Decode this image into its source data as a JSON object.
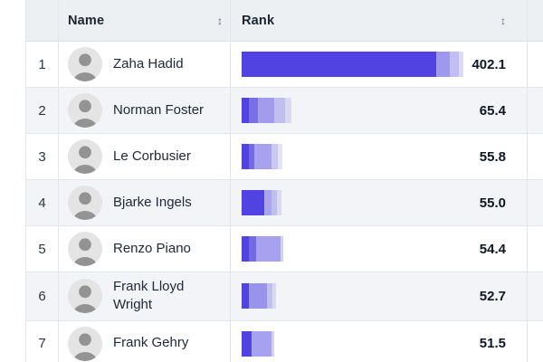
{
  "colors": {
    "bar": "#5143e1",
    "header_bg": "#edf0f3",
    "alt_row_bg": "#f2f4f7",
    "border": "#e3e6ea",
    "value_text": "#0e1724"
  },
  "table": {
    "columns": [
      {
        "key": "index",
        "label": ""
      },
      {
        "key": "name",
        "label": "Name",
        "sortable": true
      },
      {
        "key": "rank",
        "label": "Rank",
        "sortable": true
      }
    ],
    "sort_icon": "↕",
    "rows": [
      {
        "index": "1",
        "name": "Zaha Hadid",
        "rank": "402.1",
        "bar_segments": [
          [
            215,
            1
          ],
          [
            15,
            0.55
          ],
          [
            10,
            0.35
          ],
          [
            5,
            0.2
          ]
        ]
      },
      {
        "index": "2",
        "name": "Norman Foster",
        "rank": "65.4",
        "bar_segments": [
          [
            8,
            1
          ],
          [
            10,
            0.75
          ],
          [
            18,
            0.5
          ],
          [
            12,
            0.3
          ],
          [
            7,
            0.15
          ]
        ]
      },
      {
        "index": "3",
        "name": "Le Corbusier",
        "rank": "55.8",
        "bar_segments": [
          [
            8,
            1
          ],
          [
            6,
            0.8
          ],
          [
            19,
            0.5
          ],
          [
            7,
            0.3
          ],
          [
            5,
            0.15
          ]
        ]
      },
      {
        "index": "4",
        "name": "Bjarke Ingels",
        "rank": "55.0",
        "bar_segments": [
          [
            25,
            1
          ],
          [
            8,
            0.45
          ],
          [
            6,
            0.3
          ],
          [
            5,
            0.15
          ]
        ]
      },
      {
        "index": "5",
        "name": "Renzo Piano",
        "rank": "54.4",
        "bar_segments": [
          [
            8,
            1
          ],
          [
            8,
            0.8
          ],
          [
            27,
            0.5
          ],
          [
            3,
            0.25
          ]
        ]
      },
      {
        "index": "6",
        "name": "Frank Lloyd Wright",
        "rank": "52.7",
        "bar_segments": [
          [
            8,
            1
          ],
          [
            20,
            0.55
          ],
          [
            6,
            0.3
          ],
          [
            4,
            0.15
          ]
        ]
      },
      {
        "index": "7",
        "name": "Frank Gehry",
        "rank": "51.5",
        "bar_segments": [
          [
            11,
            1
          ],
          [
            22,
            0.5
          ],
          [
            3,
            0.25
          ]
        ]
      }
    ]
  },
  "chart_data": {
    "type": "bar",
    "orientation": "horizontal",
    "categories": [
      "Zaha Hadid",
      "Norman Foster",
      "Le Corbusier",
      "Bjarke Ingels",
      "Renzo Piano",
      "Frank Lloyd Wright",
      "Frank Gehry"
    ],
    "values": [
      402.1,
      65.4,
      55.8,
      55.0,
      54.4,
      52.7,
      51.5
    ],
    "title": "",
    "xlabel": "Rank",
    "ylabel": "Name",
    "value_labels_shown": true,
    "bar_color": "#5143e1",
    "legend": "none",
    "grid": "off"
  }
}
